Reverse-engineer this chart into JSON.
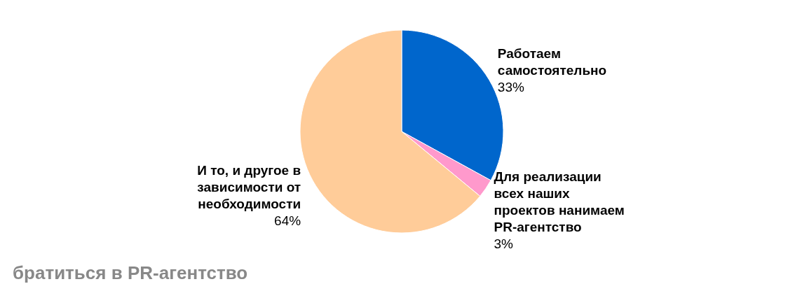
{
  "chart_data": {
    "type": "pie",
    "categories": [
      "Работаем самостоятельно",
      "Для реализации всех наших проектов нанимаем PR-агентство",
      "И то, и другое в зависимости от необходимости"
    ],
    "values": [
      33,
      3,
      64
    ],
    "value_labels": [
      "33%",
      "3%",
      "64%"
    ],
    "colors": [
      "#0066cc",
      "#ff99cc",
      "#ffcc99"
    ],
    "annotations": [
      "братиться в PR-агентство"
    ]
  }
}
